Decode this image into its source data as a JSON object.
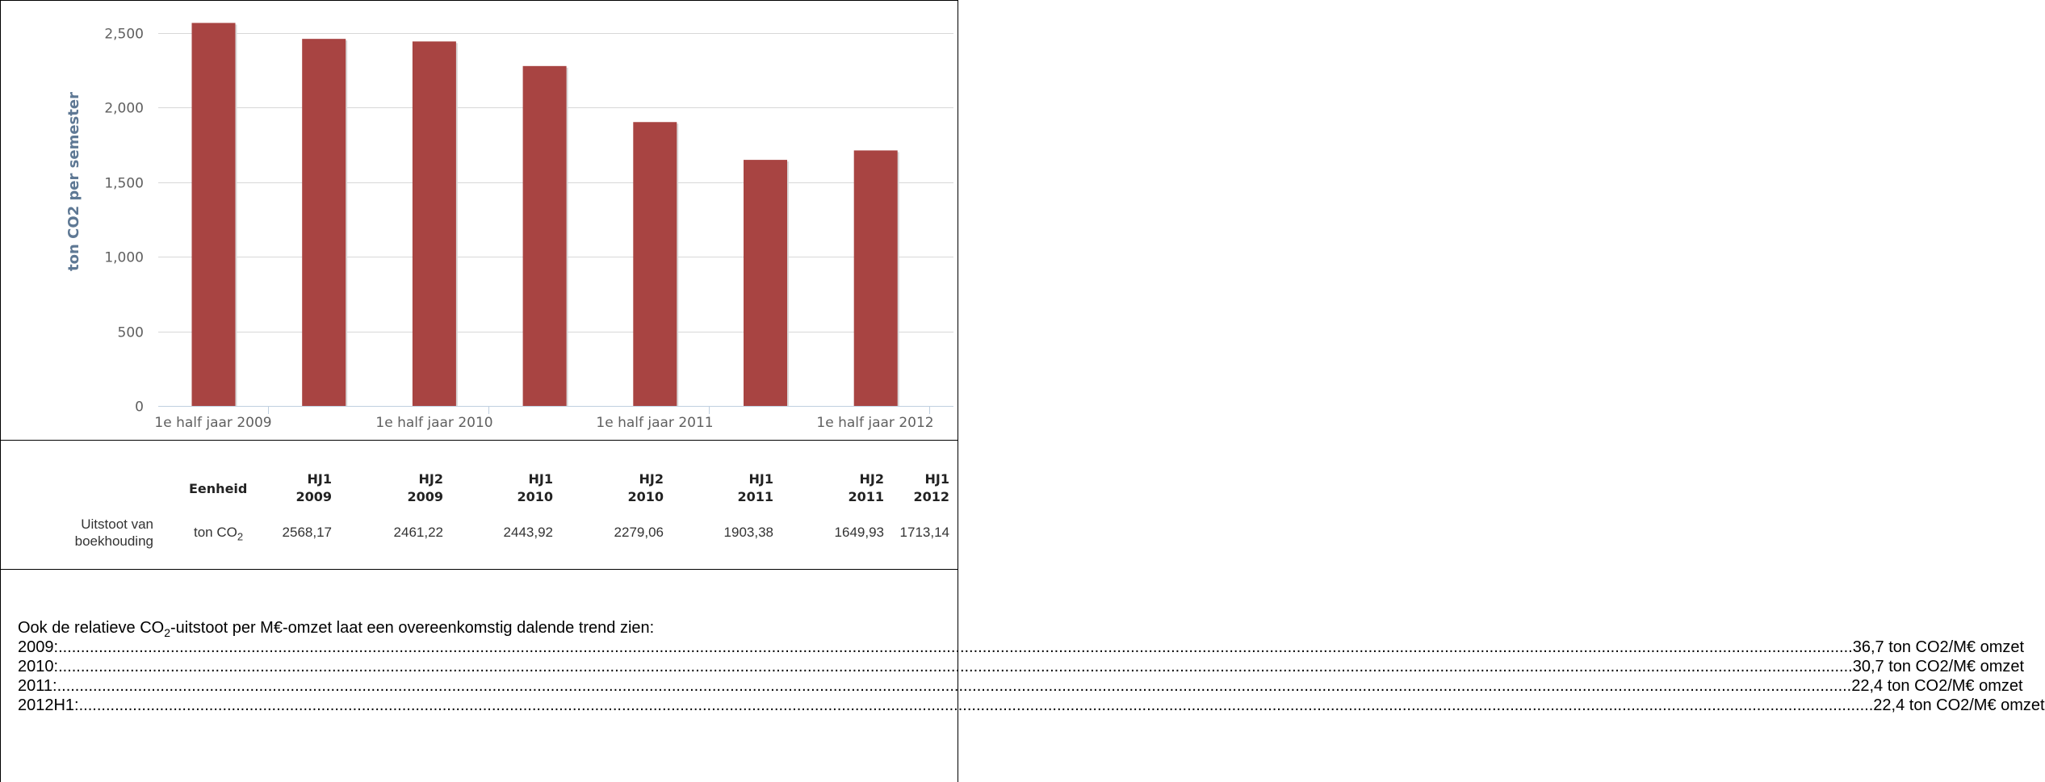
{
  "chart_data": {
    "type": "bar",
    "ylabel": "ton CO2 per semester",
    "xlabel": "",
    "ylim": [
      0,
      2500
    ],
    "y_ticks": [
      "0",
      "500",
      "1,000",
      "1,500",
      "2,000",
      "2,500"
    ],
    "y_tick_values": [
      0,
      500,
      1000,
      1500,
      2000,
      2500
    ],
    "x_tick_labels": [
      "1e half jaar 2009",
      "1e half jaar 2010",
      "1e half jaar 2011",
      "1e half jaar 2012"
    ],
    "categories": [
      "HJ1 2009",
      "HJ2 2009",
      "HJ1 2010",
      "HJ2 2010",
      "HJ1 2011",
      "HJ2 2011",
      "HJ1 2012"
    ],
    "values": [
      2568.17,
      2461.22,
      2443.92,
      2279.06,
      1903.38,
      1649.93,
      1713.14
    ],
    "bar_color": "#a84442",
    "grid": true
  },
  "table": {
    "unit_header": "Eenheid",
    "columns": [
      {
        "line1": "HJ1",
        "line2": "2009"
      },
      {
        "line1": "HJ2",
        "line2": "2009"
      },
      {
        "line1": "HJ1",
        "line2": "2010"
      },
      {
        "line1": "HJ2",
        "line2": "2010"
      },
      {
        "line1": "HJ1",
        "line2": "2011"
      },
      {
        "line1": "HJ2",
        "line2": "2011"
      },
      {
        "line1": "HJ1",
        "line2": "2012"
      }
    ],
    "row_label_line1": "Uitstoot van",
    "row_label_line2": "boekhouding",
    "unit_main": "ton CO",
    "unit_sub": "2",
    "cells": [
      "2568,17",
      "2461,22",
      "2443,92",
      "2279,06",
      "1903,38",
      "1649,93",
      "1713,14"
    ]
  },
  "text": {
    "intro_before": "Ook de relatieve CO",
    "intro_sub": "2",
    "intro_after": "-uitstoot per M€-omzet laat een overeenkomstig dalende trend zien:",
    "rows": [
      {
        "label": "2009:",
        "value": "36,7 ton CO2/M€ omzet"
      },
      {
        "label": "2010:",
        "value": "30,7 ton CO2/M€ omzet"
      },
      {
        "label": "2011:",
        "value": "22,4 ton CO2/M€ omzet"
      },
      {
        "label": "2012H1:",
        "value": "22,4 ton CO2/M€ omzet"
      }
    ]
  }
}
